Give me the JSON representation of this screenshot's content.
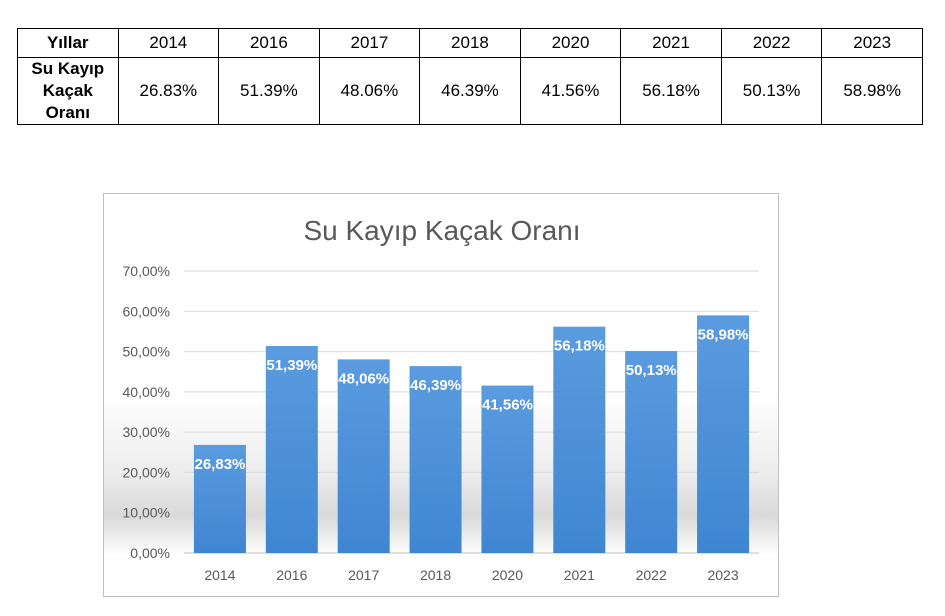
{
  "table": {
    "header_label": "Yıllar",
    "row_label": [
      "Su Kayıp Kaçak",
      "Oranı"
    ],
    "years": [
      "2014",
      "2016",
      "2017",
      "2018",
      "2020",
      "2021",
      "2022",
      "2023"
    ],
    "values": [
      "26.83%",
      "51.39%",
      "48.06%",
      "46.39%",
      "41.56%",
      "56.18%",
      "50.13%",
      "58.98%"
    ]
  },
  "chart_data": {
    "type": "bar",
    "title": "Su Kayıp Kaçak Oranı",
    "categories": [
      "2014",
      "2016",
      "2017",
      "2018",
      "2020",
      "2021",
      "2022",
      "2023"
    ],
    "values": [
      26.83,
      51.39,
      48.06,
      46.39,
      41.56,
      56.18,
      50.13,
      58.98
    ],
    "data_labels": [
      "26,83%",
      "51,39%",
      "48,06%",
      "46,39%",
      "41,56%",
      "56,18%",
      "50,13%",
      "58,98%"
    ],
    "y_ticks": [
      "0,00%",
      "10,00%",
      "20,00%",
      "30,00%",
      "40,00%",
      "50,00%",
      "60,00%",
      "70,00%"
    ],
    "ylim": [
      0,
      70
    ],
    "grid": true,
    "legend": "none",
    "bar_color": "#4a90d9"
  }
}
